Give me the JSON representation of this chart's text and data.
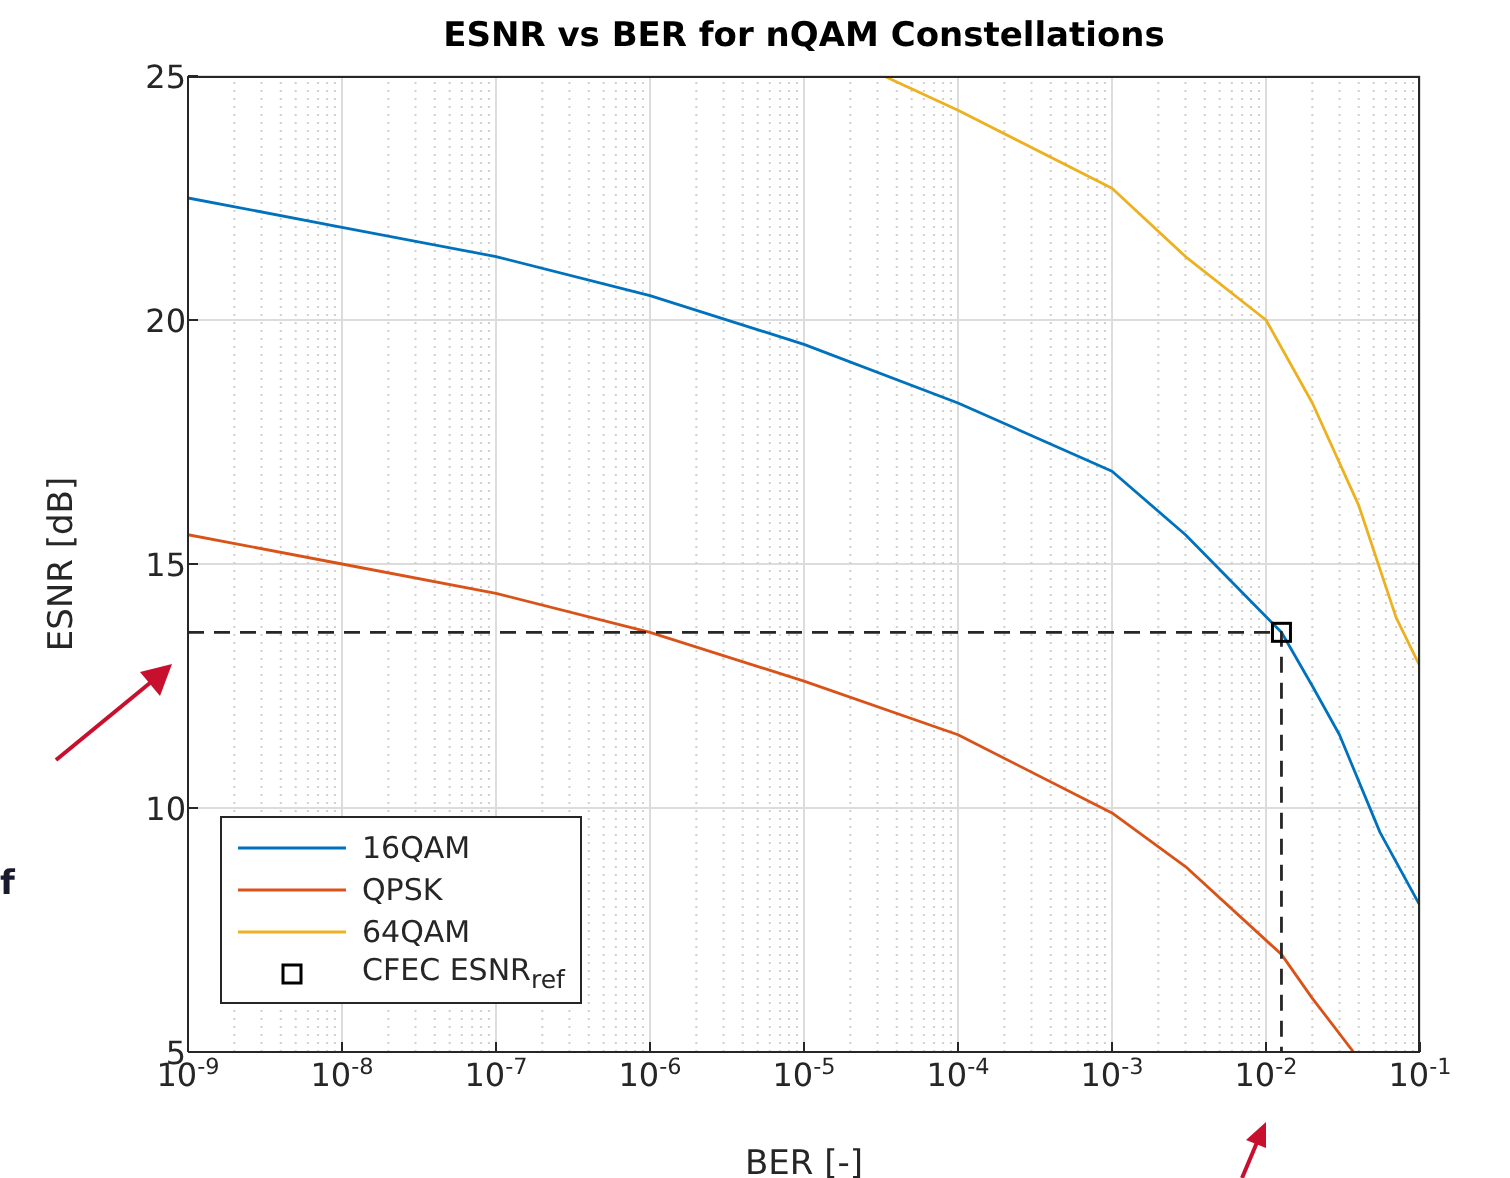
{
  "chart_data": {
    "type": "line",
    "title": "ESNR vs BER for nQAM Constellations",
    "xlabel": "BER [-]",
    "ylabel": "ESNR [dB]",
    "log": "x",
    "grid": true,
    "legend": "bottom left",
    "marker": "none",
    "annotations": [
      "f"
    ],
    "xlim": [
      1e-09,
      0.1
    ],
    "xticks": [
      {
        "value": 1e-09,
        "label": "10$^{-9}$"
      },
      {
        "value": 1e-08,
        "label": "10$^{-8}$"
      },
      {
        "value": 1e-07,
        "label": "10$^{-7}$"
      },
      {
        "value": 1e-06,
        "label": "10$^{-6}$"
      },
      {
        "value": 1e-05,
        "label": "10$^{-5}$"
      },
      {
        "value": 0.0001,
        "label": "10$^{-4}$"
      },
      {
        "value": 0.001,
        "label": "10$^{-3}$"
      },
      {
        "value": 0.01,
        "label": "10$^{-2}$"
      },
      {
        "value": 0.1,
        "label": "10$^{-1}$"
      }
    ],
    "ylim": [
      5,
      25
    ],
    "yticks": [
      5,
      10,
      15,
      20,
      25
    ],
    "series": [
      {
        "name": "16QAM",
        "color": "#0072bd",
        "x": [
          1e-09,
          1e-08,
          1e-07,
          1e-06,
          1e-05,
          0.0001,
          0.001,
          0.003,
          0.0126,
          0.02,
          0.03,
          0.055,
          0.1
        ],
        "values": [
          22.5,
          21.9,
          21.3,
          20.5,
          19.5,
          18.3,
          16.9,
          15.6,
          13.6,
          12.5,
          11.5,
          9.5,
          8.0
        ]
      },
      {
        "name": "QPSK",
        "color": "#d95319",
        "x": [
          1e-09,
          1e-08,
          1e-07,
          1e-06,
          1e-05,
          0.0001,
          0.001,
          0.003,
          0.0126,
          0.02,
          0.037
        ],
        "values": [
          15.6,
          15.0,
          14.4,
          13.6,
          12.6,
          11.5,
          9.9,
          8.8,
          7.0,
          6.1,
          5.0
        ]
      },
      {
        "name": "64QAM",
        "color": "#edb120",
        "x": [
          3.3e-05,
          0.0001,
          0.001,
          0.003,
          0.01,
          0.02,
          0.04,
          0.07,
          0.1
        ],
        "values": [
          25.0,
          24.3,
          22.7,
          21.3,
          20.0,
          18.3,
          16.2,
          13.9,
          12.9
        ]
      },
      {
        "color": "#262626",
        "line_style": "dashed",
        "x": [
          1e-09,
          0.0126,
          0.0126
        ],
        "values": [
          13.6,
          13.6,
          5.0
        ]
      },
      {
        "type": "scatter",
        "name": "CFEC ESNR$_{ref}$",
        "color": "#000000",
        "marker": "square",
        "x": [
          0.0126
        ],
        "values": [
          13.6
        ]
      }
    ]
  }
}
